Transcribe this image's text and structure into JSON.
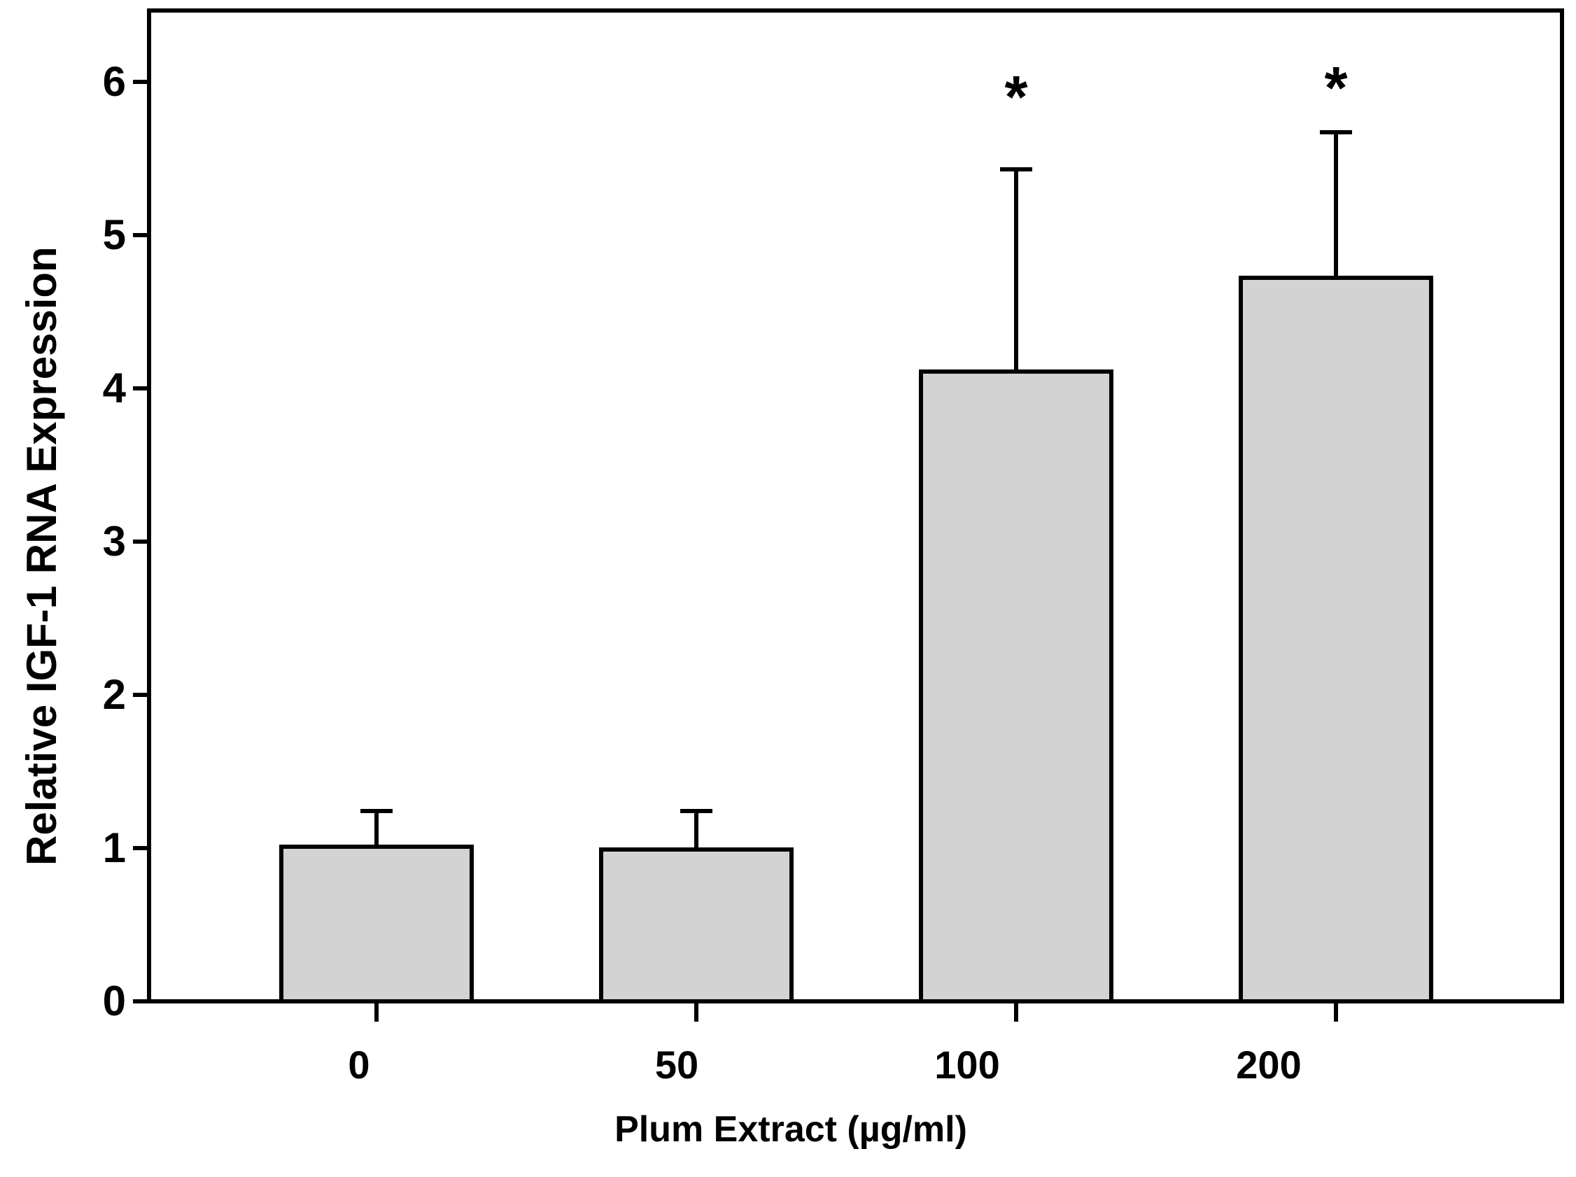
{
  "chart_data": {
    "type": "bar",
    "xlabel": "Plum Extract (µg/ml)",
    "ylabel": "Relative IGF-1 RNA Expression",
    "categories": [
      "0",
      "50",
      "100",
      "200"
    ],
    "values": [
      1.01,
      0.99,
      4.11,
      4.72
    ],
    "errors_upper": [
      0.23,
      0.25,
      1.32,
      0.95
    ],
    "error_caps_at": [
      1.24,
      1.24,
      5.43,
      5.67
    ],
    "significance": [
      false,
      false,
      true,
      true
    ],
    "significance_marker": "*",
    "y_ticks": [
      0,
      1,
      2,
      3,
      4,
      5,
      6
    ],
    "ylim": [
      0,
      6.5
    ],
    "grid": false,
    "legend": false,
    "bar_fill": "#d3d3d3",
    "bar_border": "#000000",
    "axis_color": "#000000",
    "background": "#ffffff"
  }
}
